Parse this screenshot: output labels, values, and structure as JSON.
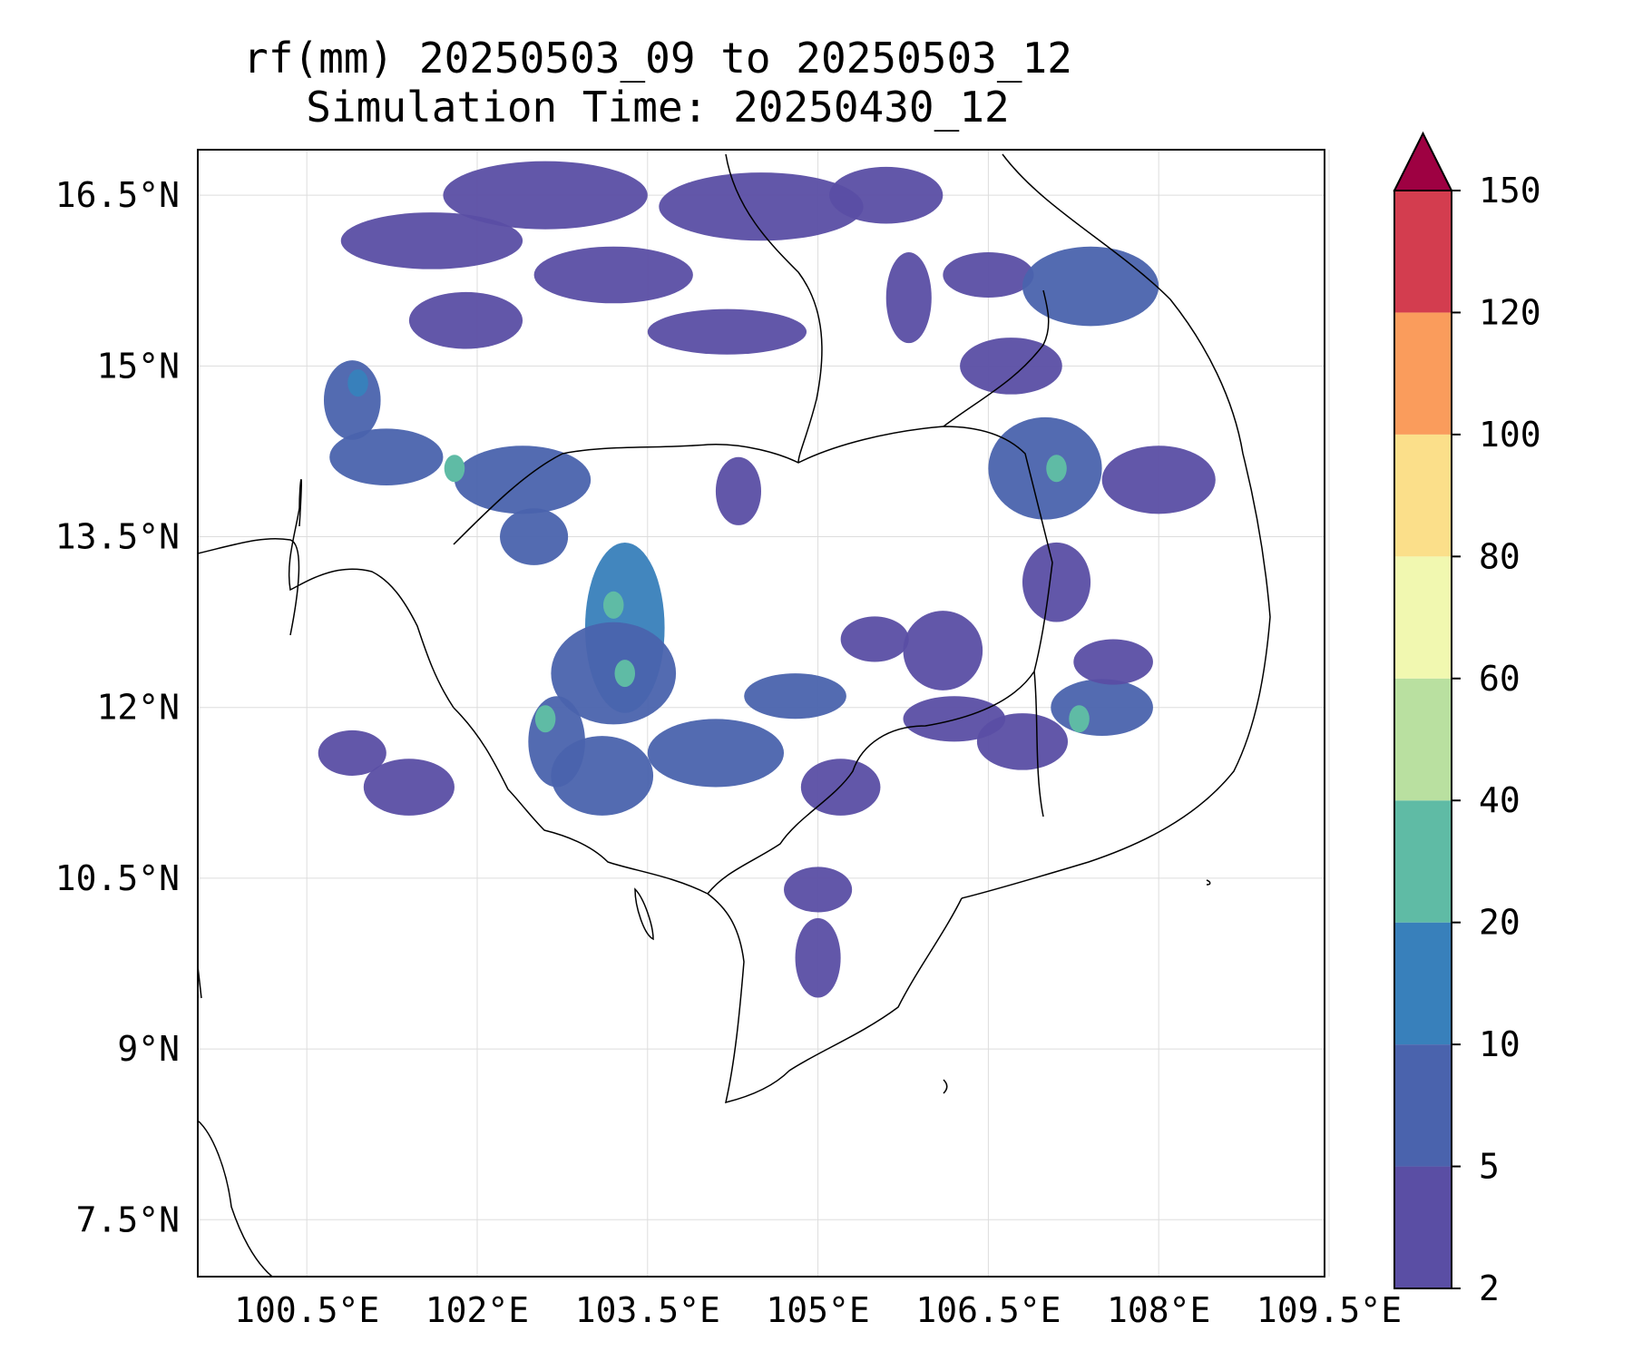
{
  "title": {
    "line1": "rf(mm) 20250503_09 to 20250503_12",
    "line2": "Simulation Time: 20250430_12"
  },
  "map": {
    "lon_range": [
      99.54,
      109.46
    ],
    "lat_range": [
      7.0,
      16.9
    ],
    "lon_ticks": [
      {
        "value": 100.5,
        "label": "100.5°E"
      },
      {
        "value": 102.0,
        "label": "102°E"
      },
      {
        "value": 103.5,
        "label": "103.5°E"
      },
      {
        "value": 105.0,
        "label": "105°E"
      },
      {
        "value": 106.5,
        "label": "106.5°E"
      },
      {
        "value": 108.0,
        "label": "108°E"
      },
      {
        "value": 109.5,
        "label": "109.5°E"
      }
    ],
    "lat_ticks": [
      {
        "value": 16.5,
        "label": "16.5°N"
      },
      {
        "value": 15.0,
        "label": "15°N"
      },
      {
        "value": 13.5,
        "label": "13.5°N"
      },
      {
        "value": 12.0,
        "label": "12°N"
      },
      {
        "value": 10.5,
        "label": "10.5°N"
      },
      {
        "value": 9.0,
        "label": "9°N"
      },
      {
        "value": 7.5,
        "label": "7.5°N"
      }
    ],
    "grid": true,
    "rain_patches": [
      {
        "lon": 100.9,
        "lat": 14.7,
        "rx": 0.25,
        "ry": 0.35,
        "level": 1
      },
      {
        "lon": 101.2,
        "lat": 14.2,
        "rx": 0.5,
        "ry": 0.25,
        "level": 1
      },
      {
        "lon": 101.6,
        "lat": 16.1,
        "rx": 0.8,
        "ry": 0.25,
        "level": 0
      },
      {
        "lon": 101.9,
        "lat": 15.4,
        "rx": 0.5,
        "ry": 0.25,
        "level": 0
      },
      {
        "lon": 102.6,
        "lat": 16.5,
        "rx": 0.9,
        "ry": 0.3,
        "level": 0
      },
      {
        "lon": 103.2,
        "lat": 15.8,
        "rx": 0.7,
        "ry": 0.25,
        "level": 0
      },
      {
        "lon": 104.5,
        "lat": 16.4,
        "rx": 0.9,
        "ry": 0.3,
        "level": 0
      },
      {
        "lon": 104.2,
        "lat": 15.3,
        "rx": 0.7,
        "ry": 0.2,
        "level": 0
      },
      {
        "lon": 105.6,
        "lat": 16.5,
        "rx": 0.5,
        "ry": 0.25,
        "level": 0
      },
      {
        "lon": 105.8,
        "lat": 15.6,
        "rx": 0.2,
        "ry": 0.4,
        "level": 0
      },
      {
        "lon": 106.5,
        "lat": 15.8,
        "rx": 0.4,
        "ry": 0.2,
        "level": 0
      },
      {
        "lon": 107.4,
        "lat": 15.7,
        "rx": 0.6,
        "ry": 0.35,
        "level": 1
      },
      {
        "lon": 106.7,
        "lat": 15.0,
        "rx": 0.45,
        "ry": 0.25,
        "level": 0
      },
      {
        "lon": 108.0,
        "lat": 14.0,
        "rx": 0.5,
        "ry": 0.3,
        "level": 0
      },
      {
        "lon": 107.0,
        "lat": 14.1,
        "rx": 0.5,
        "ry": 0.45,
        "level": 1
      },
      {
        "lon": 107.1,
        "lat": 13.1,
        "rx": 0.3,
        "ry": 0.35,
        "level": 0
      },
      {
        "lon": 102.4,
        "lat": 14.0,
        "rx": 0.6,
        "ry": 0.3,
        "level": 1
      },
      {
        "lon": 102.5,
        "lat": 13.5,
        "rx": 0.3,
        "ry": 0.25,
        "level": 1
      },
      {
        "lon": 103.3,
        "lat": 12.7,
        "rx": 0.35,
        "ry": 0.75,
        "level": 2
      },
      {
        "lon": 103.2,
        "lat": 12.3,
        "rx": 0.55,
        "ry": 0.45,
        "level": 1
      },
      {
        "lon": 102.7,
        "lat": 11.7,
        "rx": 0.25,
        "ry": 0.4,
        "level": 1
      },
      {
        "lon": 103.1,
        "lat": 11.4,
        "rx": 0.45,
        "ry": 0.35,
        "level": 1
      },
      {
        "lon": 104.1,
        "lat": 11.6,
        "rx": 0.6,
        "ry": 0.3,
        "level": 1
      },
      {
        "lon": 104.8,
        "lat": 12.1,
        "rx": 0.45,
        "ry": 0.2,
        "level": 1
      },
      {
        "lon": 105.2,
        "lat": 11.3,
        "rx": 0.35,
        "ry": 0.25,
        "level": 0
      },
      {
        "lon": 105.0,
        "lat": 10.4,
        "rx": 0.3,
        "ry": 0.2,
        "level": 0
      },
      {
        "lon": 105.0,
        "lat": 9.8,
        "rx": 0.2,
        "ry": 0.35,
        "level": 0
      },
      {
        "lon": 105.5,
        "lat": 12.6,
        "rx": 0.3,
        "ry": 0.2,
        "level": 0
      },
      {
        "lon": 106.2,
        "lat": 11.9,
        "rx": 0.45,
        "ry": 0.2,
        "level": 0
      },
      {
        "lon": 106.1,
        "lat": 12.5,
        "rx": 0.35,
        "ry": 0.35,
        "level": 0
      },
      {
        "lon": 106.8,
        "lat": 11.7,
        "rx": 0.4,
        "ry": 0.25,
        "level": 0
      },
      {
        "lon": 107.5,
        "lat": 12.0,
        "rx": 0.45,
        "ry": 0.25,
        "level": 1
      },
      {
        "lon": 107.6,
        "lat": 12.4,
        "rx": 0.35,
        "ry": 0.2,
        "level": 0
      },
      {
        "lon": 104.3,
        "lat": 13.9,
        "rx": 0.2,
        "ry": 0.3,
        "level": 0
      },
      {
        "lon": 100.9,
        "lat": 11.6,
        "rx": 0.3,
        "ry": 0.2,
        "level": 0
      },
      {
        "lon": 101.4,
        "lat": 11.3,
        "rx": 0.4,
        "ry": 0.25,
        "level": 0
      }
    ],
    "rain_peaks": [
      {
        "lon": 100.95,
        "lat": 14.85,
        "level": 2
      },
      {
        "lon": 101.8,
        "lat": 14.1,
        "level": 3
      },
      {
        "lon": 103.2,
        "lat": 12.9,
        "level": 3
      },
      {
        "lon": 103.3,
        "lat": 12.3,
        "level": 3
      },
      {
        "lon": 102.6,
        "lat": 11.9,
        "level": 3
      },
      {
        "lon": 107.3,
        "lat": 11.9,
        "level": 3
      },
      {
        "lon": 107.1,
        "lat": 14.1,
        "level": 3
      }
    ]
  },
  "colorbar": {
    "levels": [
      "2",
      "5",
      "10",
      "20",
      "40",
      "60",
      "80",
      "100",
      "120",
      "150"
    ],
    "colors": [
      "#5a4ea4",
      "#4a63ad",
      "#3880bb",
      "#5fbba5",
      "#b9e0a0",
      "#f1f8b0",
      "#fbdf8a",
      "#fa9c5c",
      "#d33d4f"
    ],
    "extend_color": "#9e0142"
  }
}
